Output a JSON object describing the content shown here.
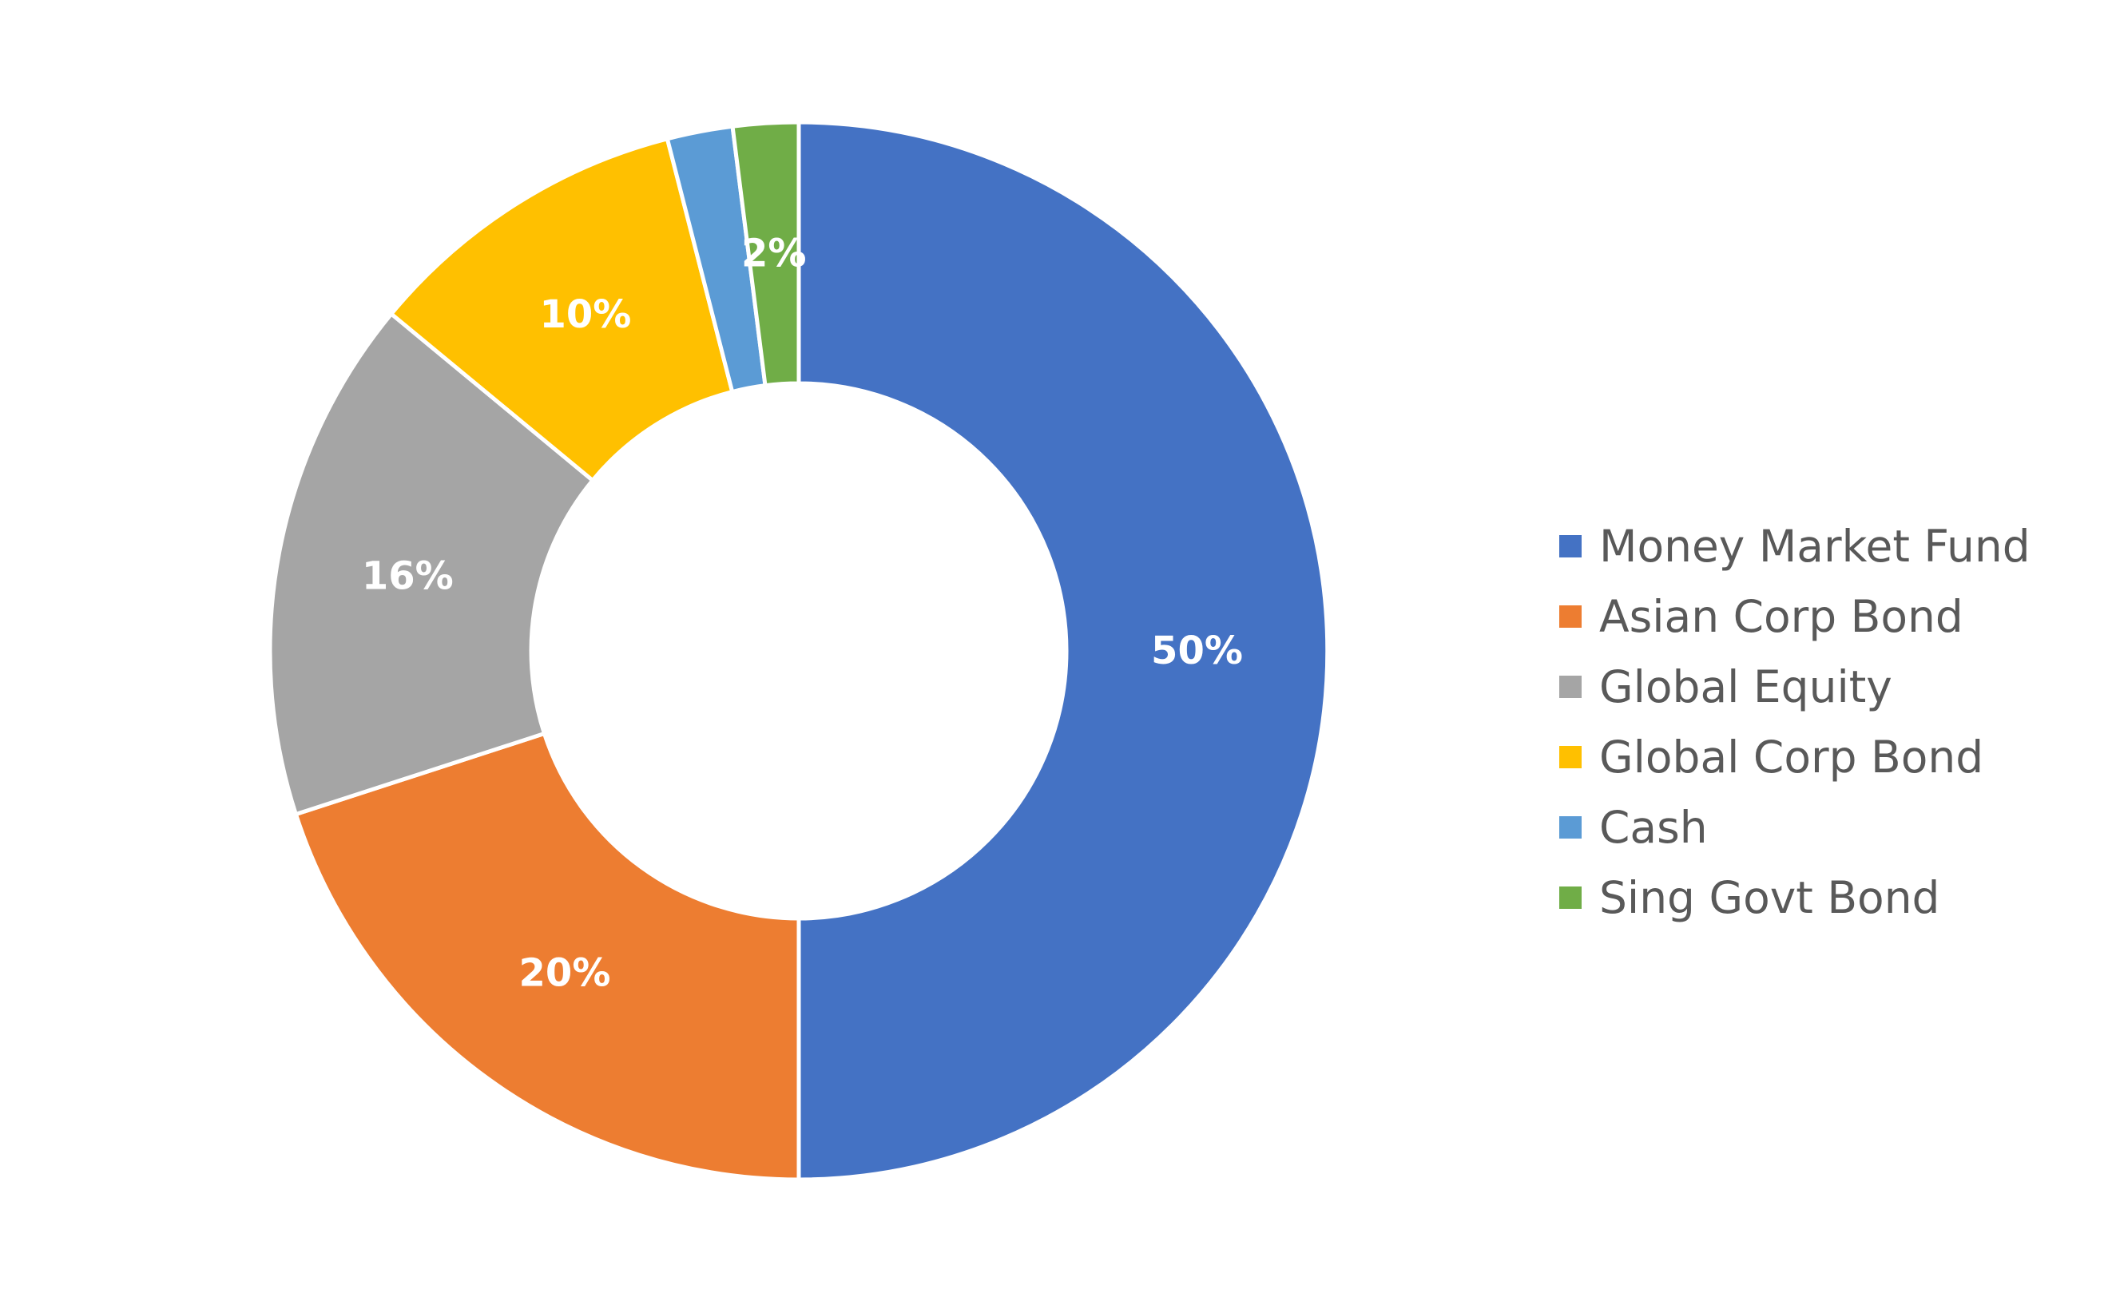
{
  "chart_data": {
    "type": "pie",
    "variant": "donut",
    "title": "",
    "categories": [
      "Money Market Fund",
      "Asian Corp Bond",
      "Global Equity",
      "Global Corp Bond",
      "Cash",
      "Sing Govt Bond"
    ],
    "values": [
      50,
      20,
      16,
      10,
      2,
      2
    ],
    "data_labels": [
      "50%",
      "20%",
      "16%",
      "10%",
      "",
      "2%"
    ],
    "colors": [
      "#4472C4",
      "#ED7D31",
      "#A5A5A5",
      "#FFC000",
      "#5B9BD5",
      "#70AD47"
    ],
    "legend_position": "right",
    "start_angle_deg": 0,
    "direction": "clockwise"
  }
}
